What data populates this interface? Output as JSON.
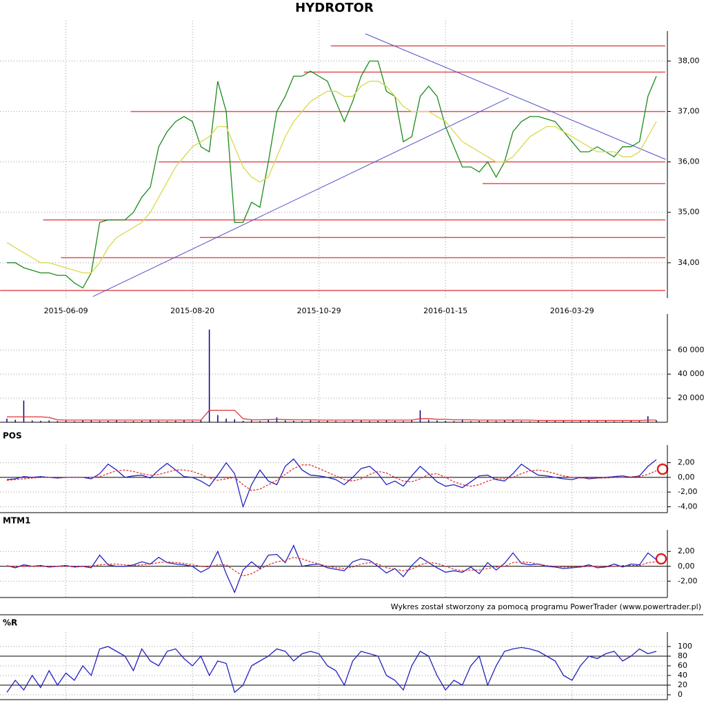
{
  "footer": "Wykres został stworzony za pomocą programu PowerTrader (www.powertrader.pl)",
  "chart_data": [
    {
      "type": "line",
      "title": "HYDROTOR",
      "categories": [
        null,
        null,
        null,
        null,
        null,
        null,
        null,
        "2015-06-09",
        null,
        null,
        null,
        null,
        null,
        null,
        null,
        null,
        null,
        null,
        null,
        null,
        null,
        null,
        "2015-08-20",
        null,
        null,
        null,
        null,
        null,
        null,
        null,
        null,
        null,
        null,
        null,
        null,
        null,
        null,
        "2015-10-29",
        null,
        null,
        null,
        null,
        null,
        null,
        null,
        null,
        null,
        null,
        null,
        null,
        null,
        null,
        "2016-01-15",
        null,
        null,
        null,
        null,
        null,
        null,
        null,
        null,
        null,
        null,
        null,
        null,
        null,
        null,
        "2016-03-29",
        null,
        null,
        null,
        null,
        null,
        null,
        null,
        null,
        null,
        null
      ],
      "series": [
        {
          "color": "#1a8a1a",
          "values": [
            34.0,
            34.0,
            33.9,
            33.85,
            33.8,
            33.8,
            33.75,
            33.75,
            33.6,
            33.5,
            33.8,
            34.8,
            34.85,
            34.85,
            34.85,
            35.0,
            35.3,
            35.5,
            36.3,
            36.6,
            36.8,
            36.9,
            36.8,
            36.3,
            36.2,
            37.6,
            37.0,
            34.8,
            34.8,
            35.2,
            35.1,
            36.0,
            37.0,
            37.3,
            37.7,
            37.7,
            37.8,
            37.7,
            37.6,
            37.2,
            36.8,
            37.2,
            37.7,
            38.0,
            38.0,
            37.4,
            37.3,
            36.4,
            36.5,
            37.3,
            37.5,
            37.3,
            36.7,
            36.3,
            35.9,
            35.9,
            35.8,
            36.0,
            35.7,
            36.0,
            36.6,
            36.8,
            36.9,
            36.9,
            36.85,
            36.8,
            36.6,
            36.4,
            36.2,
            36.2,
            36.3,
            36.2,
            36.1,
            36.3,
            36.3,
            36.4,
            37.3,
            37.7
          ]
        },
        {
          "color": "#d8d84a",
          "values": [
            34.4,
            34.3,
            34.2,
            34.1,
            34.0,
            34.0,
            33.95,
            33.9,
            33.85,
            33.8,
            33.8,
            34.0,
            34.3,
            34.5,
            34.6,
            34.7,
            34.8,
            35.0,
            35.3,
            35.6,
            35.9,
            36.1,
            36.3,
            36.4,
            36.5,
            36.7,
            36.7,
            36.3,
            35.9,
            35.7,
            35.6,
            35.7,
            36.1,
            36.5,
            36.8,
            37.0,
            37.2,
            37.3,
            37.4,
            37.4,
            37.3,
            37.3,
            37.5,
            37.6,
            37.6,
            37.5,
            37.3,
            37.1,
            37.0,
            37.0,
            37.0,
            36.9,
            36.8,
            36.6,
            36.4,
            36.3,
            36.2,
            36.1,
            36.0,
            36.0,
            36.1,
            36.3,
            36.5,
            36.6,
            36.7,
            36.7,
            36.6,
            36.5,
            36.4,
            36.3,
            36.2,
            36.2,
            36.2,
            36.1,
            36.1,
            36.2,
            36.5,
            36.8
          ]
        }
      ],
      "horizontal_lines": [
        {
          "y": 38.3,
          "x_start": 38.4
        },
        {
          "y": 37.78,
          "x_start": 35.2
        },
        {
          "y": 37.0,
          "x_start": 14.7
        },
        {
          "y": 36.0,
          "x_start": 18.0
        },
        {
          "y": 35.57,
          "x_start": 56.4
        },
        {
          "y": 34.85,
          "x_start": 4.3
        },
        {
          "y": 34.5,
          "x_start": 22.9
        },
        {
          "y": 34.1,
          "x_start": 6.4
        },
        {
          "y": 33.45,
          "x_start": -0.8
        }
      ],
      "line_color": "#e05050",
      "trend_lines": [
        {
          "x": [
            10.2,
            59.5
          ],
          "y": [
            33.33,
            37.27
          ]
        },
        {
          "x": [
            42.5,
            78.1
          ],
          "y": [
            38.54,
            36.05
          ]
        }
      ],
      "trend_color": "#5050c8",
      "ylim": [
        33.3,
        38.8
      ],
      "yticks": [
        {
          "value": 34,
          "label": "34,00"
        },
        {
          "value": 35,
          "label": "35,00"
        },
        {
          "value": 36,
          "label": "36,00"
        },
        {
          "value": 37,
          "label": "37,00"
        },
        {
          "value": 38,
          "label": "38,00"
        }
      ],
      "grid": true
    },
    {
      "type": "bar",
      "series": [
        {
          "color": "#000080",
          "values": [
            3000,
            2000,
            18000,
            1500,
            1200,
            1500,
            1000,
            1300,
            800,
            1500,
            2000,
            1000,
            1200,
            1500,
            800,
            1000,
            1200,
            1500,
            1000,
            900,
            1200,
            1500,
            1000,
            2000,
            77000,
            6000,
            3000,
            2500,
            1200,
            1500,
            1000,
            2000,
            4000,
            1500,
            1200,
            1000,
            1500,
            1000,
            1200,
            1000,
            800,
            1500,
            2000,
            1000,
            1200,
            1500,
            1200,
            1000,
            1500,
            10000,
            2000,
            1500,
            1200,
            1000,
            2500,
            1000,
            1200,
            1500,
            1000,
            2000,
            1500,
            1000,
            800,
            1200,
            1500,
            1000,
            1200,
            800,
            1000,
            1500,
            1000,
            1200,
            800,
            1000,
            1500,
            1000,
            5000,
            1500
          ]
        },
        {
          "color": "#e03030",
          "kind": "line",
          "values": [
            4500,
            4500,
            4500,
            4500,
            4500,
            4000,
            2000,
            1800,
            1800,
            1800,
            1800,
            1800,
            1800,
            1800,
            1800,
            1800,
            1800,
            1800,
            1800,
            1800,
            1800,
            1800,
            1800,
            1800,
            10000,
            10000,
            10000,
            10000,
            3000,
            2000,
            2000,
            2200,
            2500,
            2200,
            2000,
            2000,
            2000,
            1800,
            1800,
            1800,
            1800,
            1800,
            1800,
            1800,
            1800,
            1800,
            1800,
            1800,
            1800,
            3000,
            3000,
            2500,
            2500,
            2000,
            2000,
            2000,
            1800,
            1800,
            1800,
            1800,
            1800,
            1800,
            1800,
            1500,
            1500,
            1500,
            1500,
            1500,
            1500,
            1500,
            1500,
            1500,
            1500,
            1500,
            1500,
            1500,
            1800,
            1800
          ]
        }
      ],
      "ylim": [
        0,
        90000
      ],
      "yticks": [
        {
          "value": 20000,
          "label": "20 000"
        },
        {
          "value": 40000,
          "label": "40 000"
        },
        {
          "value": 60000,
          "label": "60 000"
        }
      ],
      "grid": true
    },
    {
      "type": "line",
      "title": "POS",
      "series": [
        {
          "color": "#2020c0",
          "values": [
            -0.3,
            -0.2,
            0.1,
            0.0,
            0.1,
            0.0,
            -0.1,
            0.0,
            0.0,
            0.0,
            -0.2,
            0.5,
            1.8,
            1.0,
            0.0,
            0.2,
            0.3,
            -0.1,
            1.0,
            1.9,
            1.0,
            0.1,
            0.0,
            -0.5,
            -1.2,
            0.3,
            2.0,
            0.5,
            -4.0,
            -1.0,
            1.0,
            -0.5,
            -1.0,
            1.5,
            2.5,
            1.0,
            0.3,
            0.2,
            0.0,
            -0.3,
            -1.0,
            0.0,
            1.2,
            1.5,
            0.5,
            -1.0,
            -0.5,
            -1.2,
            0.2,
            1.5,
            0.5,
            -0.6,
            -1.2,
            -1.0,
            -1.4,
            -0.6,
            0.2,
            0.3,
            -0.3,
            -0.5,
            0.5,
            1.8,
            1.0,
            0.3,
            0.2,
            0.0,
            -0.2,
            -0.3,
            0.0,
            -0.2,
            -0.1,
            0.0,
            0.1,
            0.2,
            0.0,
            0.2,
            1.5,
            2.4
          ]
        },
        {
          "color": "#e03030",
          "dashed": true,
          "values": [
            -0.4,
            -0.3,
            -0.2,
            -0.1,
            0.0,
            0.0,
            0.0,
            0.0,
            0.0,
            0.0,
            0.0,
            0.1,
            0.5,
            0.9,
            1.0,
            0.8,
            0.5,
            0.3,
            0.4,
            0.7,
            1.0,
            1.0,
            0.8,
            0.4,
            -0.1,
            -0.4,
            -0.2,
            0.0,
            -1.0,
            -1.8,
            -1.6,
            -1.0,
            -0.4,
            0.4,
            1.2,
            1.7,
            1.7,
            1.2,
            0.7,
            0.2,
            -0.3,
            -0.5,
            -0.2,
            0.4,
            0.8,
            0.6,
            0.0,
            -0.5,
            -0.6,
            -0.2,
            0.4,
            0.5,
            0.0,
            -0.6,
            -1.0,
            -1.2,
            -1.0,
            -0.5,
            -0.2,
            -0.2,
            0.0,
            0.5,
            0.9,
            1.0,
            0.8,
            0.5,
            0.2,
            0.0,
            -0.1,
            -0.1,
            -0.1,
            -0.1,
            0.0,
            0.0,
            0.1,
            0.1,
            0.4,
            0.9
          ]
        }
      ],
      "ylim": [
        -4.8,
        4.4
      ],
      "yticks": [
        {
          "value": 2,
          "label": "2,00"
        },
        {
          "value": 0,
          "label": "0,00"
        },
        {
          "value": -2,
          "label": "-2,00"
        },
        {
          "value": -4,
          "label": "-4,00"
        }
      ],
      "levels": [
        0
      ],
      "grid": true
    },
    {
      "type": "line",
      "title": "MTM1",
      "series": [
        {
          "color": "#2020c0",
          "values": [
            0.1,
            -0.2,
            0.2,
            0.0,
            0.1,
            -0.1,
            0.0,
            0.1,
            -0.1,
            0.0,
            -0.2,
            1.5,
            0.2,
            0.0,
            0.0,
            0.2,
            0.6,
            0.3,
            1.2,
            0.5,
            0.3,
            0.2,
            0.0,
            -0.8,
            -0.2,
            2.0,
            -1.0,
            -3.5,
            -0.5,
            0.6,
            -0.3,
            1.5,
            1.6,
            0.5,
            2.8,
            0.0,
            0.2,
            0.3,
            -0.2,
            -0.4,
            -0.6,
            0.6,
            1.0,
            0.8,
            0.0,
            -0.9,
            -0.3,
            -1.4,
            0.1,
            1.2,
            0.5,
            -0.2,
            -0.8,
            -0.6,
            -0.8,
            -0.1,
            -1.0,
            0.5,
            -0.5,
            0.4,
            1.8,
            0.4,
            0.2,
            0.3,
            0.0,
            -0.1,
            -0.3,
            -0.2,
            -0.1,
            0.2,
            -0.2,
            -0.1,
            0.3,
            -0.1,
            0.3,
            0.2,
            1.8,
            0.9
          ]
        },
        {
          "color": "#e03030",
          "dashed": true,
          "values": [
            0.0,
            0.0,
            0.0,
            0.0,
            0.0,
            0.0,
            0.0,
            0.0,
            0.0,
            0.0,
            0.0,
            0.2,
            0.3,
            0.3,
            0.2,
            0.1,
            0.2,
            0.3,
            0.5,
            0.6,
            0.5,
            0.4,
            0.2,
            0.0,
            -0.1,
            0.2,
            0.2,
            -0.6,
            -1.3,
            -1.0,
            -0.4,
            0.2,
            0.6,
            0.8,
            1.2,
            1.0,
            0.6,
            0.3,
            0.0,
            -0.2,
            -0.3,
            -0.1,
            0.3,
            0.5,
            0.3,
            -0.2,
            -0.4,
            -0.6,
            -0.4,
            0.2,
            0.5,
            0.4,
            0.0,
            -0.4,
            -0.6,
            -0.5,
            -0.5,
            -0.3,
            -0.1,
            0.0,
            0.5,
            0.6,
            0.5,
            0.3,
            0.1,
            0.0,
            -0.1,
            -0.1,
            -0.1,
            0.0,
            0.0,
            -0.1,
            0.0,
            0.1,
            0.1,
            0.1,
            0.5,
            0.6
          ]
        }
      ],
      "ylim": [
        -4.2,
        4.9
      ],
      "yticks": [
        {
          "value": 2,
          "label": "2,00"
        },
        {
          "value": 0,
          "label": "0,00"
        },
        {
          "value": -2,
          "label": "-2,00"
        }
      ],
      "levels": [
        0
      ],
      "grid": true
    },
    {
      "type": "line",
      "title": "%R",
      "series": [
        {
          "color": "#2020c0",
          "values": [
            5,
            30,
            10,
            40,
            15,
            50,
            20,
            45,
            30,
            60,
            40,
            95,
            100,
            90,
            80,
            50,
            95,
            70,
            60,
            90,
            95,
            75,
            60,
            80,
            40,
            70,
            65,
            5,
            20,
            60,
            70,
            80,
            95,
            90,
            70,
            85,
            90,
            85,
            60,
            50,
            20,
            70,
            90,
            85,
            80,
            40,
            30,
            10,
            60,
            90,
            80,
            40,
            10,
            30,
            20,
            60,
            80,
            20,
            60,
            90,
            95,
            98,
            95,
            90,
            80,
            70,
            40,
            30,
            60,
            80,
            75,
            85,
            90,
            70,
            80,
            95,
            85,
            90
          ]
        }
      ],
      "ylim": [
        -10,
        130
      ],
      "yticks": [
        0,
        20,
        40,
        60,
        80,
        100
      ],
      "levels": [
        20,
        80
      ],
      "grid": true
    }
  ]
}
